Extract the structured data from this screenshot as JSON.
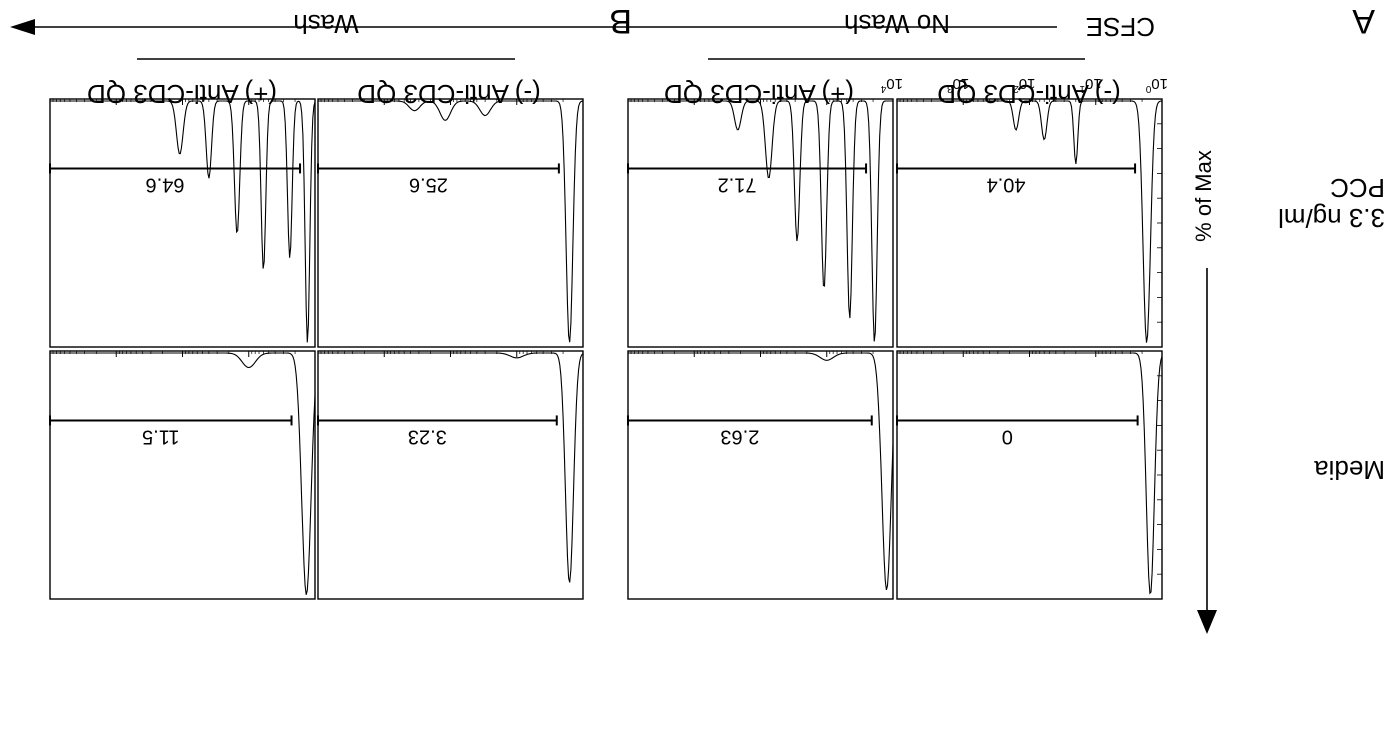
{
  "figure": {
    "panel_a_letter": "A",
    "panel_b_letter": "B",
    "group_no_wash": "No Wash",
    "group_wash": "Wash",
    "col_labels": [
      "(-) Anti-CD3 QD",
      "(+) Anti-CD3 QD",
      "(-) Anti-CD3 QD",
      "(+) Anti-CD3 QD"
    ],
    "row_labels": {
      "media": "Media",
      "pcc_line1": "3.3 ng/ml",
      "pcc_line2": "PCC"
    },
    "x_axis_label": "CFSE",
    "y_axis_label": "% of Max",
    "x_tick_labels": [
      "0",
      "1",
      "2",
      "3",
      "4"
    ]
  },
  "chart_data": {
    "type": "histogram-grid",
    "xlabel": "CFSE",
    "ylabel": "% of Max",
    "x_scale": "log",
    "x_ticks": [
      "10^0",
      "10^1",
      "10^2",
      "10^3",
      "10^4"
    ],
    "xlim": [
      1,
      10000
    ],
    "panels": [
      {
        "group": "No Wash",
        "column": "(-) Anti-CD3 QD",
        "row": "Media",
        "gate_percent": "0",
        "peaks": [
          {
            "x": 1.5,
            "h": 1.0,
            "w": 0.06
          }
        ]
      },
      {
        "group": "No Wash",
        "column": "(+) Anti-CD3 QD",
        "row": "Media",
        "gate_percent": "2.63",
        "peaks": [
          {
            "x": 1.25,
            "h": 0.98,
            "w": 0.07
          },
          {
            "x": 10.0,
            "h": 0.03,
            "w": 0.1
          }
        ]
      },
      {
        "group": "Wash",
        "column": "(-) Anti-CD3 QD",
        "row": "Media",
        "gate_percent": "3.23",
        "peaks": [
          {
            "x": 1.6,
            "h": 0.95,
            "w": 0.06
          },
          {
            "x": 10.0,
            "h": 0.02,
            "w": 0.1
          }
        ]
      },
      {
        "group": "Wash",
        "column": "(+) Anti-CD3 QD",
        "row": "Media",
        "gate_percent": "11.5",
        "peaks": [
          {
            "x": 1.35,
            "h": 1.0,
            "w": 0.07
          },
          {
            "x": 10.0,
            "h": 0.06,
            "w": 0.1
          }
        ]
      },
      {
        "group": "No Wash",
        "column": "(-) Anti-CD3 QD",
        "row": "3.3 ng/ml PCC",
        "gate_percent": "40.4",
        "peaks": [
          {
            "x": 1.7,
            "h": 1.0,
            "w": 0.055
          },
          {
            "x": 20.0,
            "h": 0.26,
            "w": 0.03
          },
          {
            "x": 60.0,
            "h": 0.16,
            "w": 0.04
          },
          {
            "x": 160.0,
            "h": 0.12,
            "w": 0.04
          }
        ]
      },
      {
        "group": "No Wash",
        "column": "(+) Anti-CD3 QD",
        "row": "3.3 ng/ml PCC",
        "gate_percent": "71.2",
        "peaks": [
          {
            "x": 1.9,
            "h": 1.0,
            "w": 0.04
          },
          {
            "x": 4.5,
            "h": 0.9,
            "w": 0.04
          },
          {
            "x": 11.0,
            "h": 0.78,
            "w": 0.04
          },
          {
            "x": 28.0,
            "h": 0.58,
            "w": 0.04
          },
          {
            "x": 75.0,
            "h": 0.32,
            "w": 0.05
          },
          {
            "x": 220.0,
            "h": 0.12,
            "w": 0.05
          }
        ]
      },
      {
        "group": "Wash",
        "column": "(-) Anti-CD3 QD",
        "row": "3.3 ng/ml PCC",
        "gate_percent": "25.6",
        "peaks": [
          {
            "x": 1.6,
            "h": 1.0,
            "w": 0.05
          },
          {
            "x": 30.0,
            "h": 0.06,
            "w": 0.08
          },
          {
            "x": 120.0,
            "h": 0.08,
            "w": 0.08
          },
          {
            "x": 350.0,
            "h": 0.04,
            "w": 0.08
          }
        ]
      },
      {
        "group": "Wash",
        "column": "(+) Anti-CD3 QD",
        "row": "3.3 ng/ml PCC",
        "gate_percent": "64.6",
        "peaks": [
          {
            "x": 1.3,
            "h": 1.0,
            "w": 0.035
          },
          {
            "x": 2.4,
            "h": 0.65,
            "w": 0.035
          },
          {
            "x": 6.0,
            "h": 0.7,
            "w": 0.035
          },
          {
            "x": 15.0,
            "h": 0.55,
            "w": 0.04
          },
          {
            "x": 40.0,
            "h": 0.32,
            "w": 0.04
          },
          {
            "x": 110.0,
            "h": 0.22,
            "w": 0.05
          }
        ]
      }
    ]
  }
}
